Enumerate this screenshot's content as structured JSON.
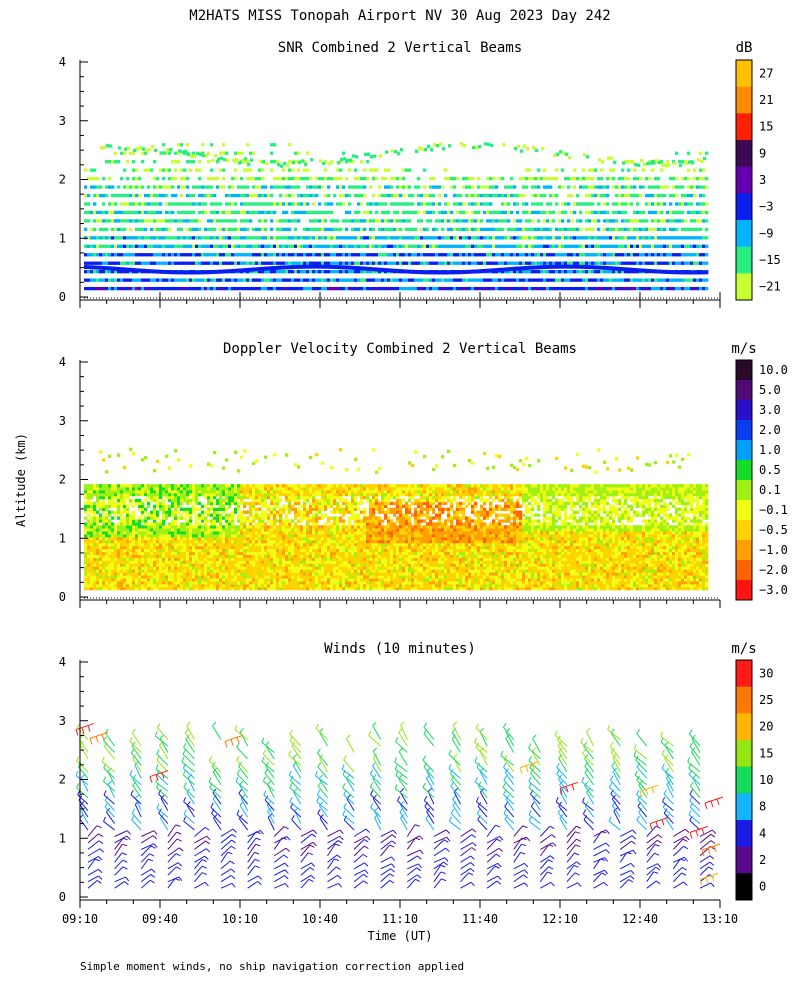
{
  "title": "M2HATS MISS Tonopah Airport NV  30 Aug 2023 Day 242",
  "footnote": "Simple moment winds, no ship navigation correction applied",
  "shared_axes": {
    "ylabel": "Altitude (km)",
    "xlabel": "Time (UT)",
    "y_ticks": [
      "0",
      "1",
      "2",
      "3",
      "4"
    ],
    "x_ticks": [
      "09:10",
      "09:40",
      "10:10",
      "10:40",
      "11:10",
      "11:40",
      "12:10",
      "12:40",
      "13:10"
    ]
  },
  "chart_data": [
    {
      "type": "heatmap",
      "title": "SNR Combined 2 Vertical Beams",
      "unit": "dB",
      "x_range": [
        "09:10",
        "13:10"
      ],
      "ylim": [
        0,
        4
      ],
      "colorbar": {
        "labels": [
          "27",
          "21",
          "15",
          "9",
          "3",
          "−3",
          "−9",
          "−15",
          "−21"
        ],
        "colors": [
          "#ffc000",
          "#ff8c00",
          "#ff2000",
          "#3c0a55",
          "#6400b0",
          "#0a1ef0",
          "#00b4ff",
          "#28f080",
          "#c8ff32"
        ]
      }
    },
    {
      "type": "heatmap",
      "title": "Doppler Velocity Combined 2 Vertical Beams",
      "unit": "m/s",
      "x_range": [
        "09:10",
        "13:10"
      ],
      "ylim": [
        0,
        4
      ],
      "colorbar": {
        "labels": [
          "10.0",
          "5.0",
          "3.0",
          "2.0",
          "1.0",
          "0.5",
          "0.1",
          "−0.1",
          "−0.5",
          "−1.0",
          "−2.0",
          "−3.0"
        ],
        "colors": [
          "#2a0a2a",
          "#500a78",
          "#2a10c8",
          "#0a3cf0",
          "#00a0ff",
          "#14dc28",
          "#a0f014",
          "#f0ff14",
          "#ffd200",
          "#ffa000",
          "#ff6400",
          "#ff1414"
        ]
      }
    },
    {
      "type": "wind_barbs",
      "title": "Winds (10 minutes)",
      "unit": "m/s",
      "interval": "10 minutes",
      "ylim": [
        0,
        4
      ],
      "colorbar": {
        "labels": [
          "30",
          "25",
          "20",
          "15",
          "10",
          "8",
          "4",
          "2",
          "0"
        ],
        "colors": [
          "#ff1a1a",
          "#ff7800",
          "#ffb400",
          "#96e614",
          "#14dc5a",
          "#14b4ff",
          "#1a1ae6",
          "#5a0a8c",
          "#000000"
        ]
      }
    }
  ]
}
